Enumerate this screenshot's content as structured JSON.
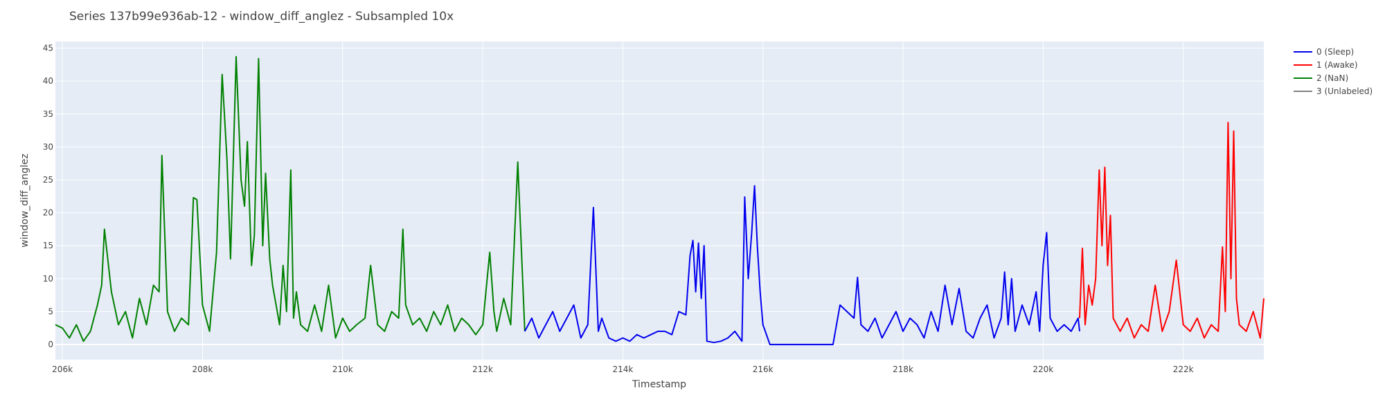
{
  "chart_data": {
    "type": "line",
    "title": "Series 137b99e936ab-12 - window_diff_anglez - Subsampled 10x",
    "xlabel": "Timestamp",
    "ylabel": "window_diff_anglez",
    "xlim": [
      205900,
      223150
    ],
    "ylim": [
      -2.3,
      46
    ],
    "x_ticks": [
      206000,
      208000,
      210000,
      212000,
      214000,
      216000,
      218000,
      220000,
      222000
    ],
    "x_tick_labels": [
      "206k",
      "208k",
      "210k",
      "212k",
      "214k",
      "216k",
      "218k",
      "220k",
      "222k"
    ],
    "y_ticks": [
      0,
      5,
      10,
      15,
      20,
      25,
      30,
      35,
      40,
      45
    ],
    "y_tick_labels": [
      "0",
      "5",
      "10",
      "15",
      "20",
      "25",
      "30",
      "35",
      "40",
      "45"
    ],
    "grid": true,
    "legend_position": "top-right",
    "legend": [
      {
        "label": "0 (Sleep)",
        "color": "#0000ee"
      },
      {
        "label": "1 (Awake)",
        "color": "#ff0000"
      },
      {
        "label": "2 (NaN)",
        "color": "#008000"
      },
      {
        "label": "3 (Unlabeled)",
        "color": "#808080"
      }
    ],
    "series": [
      {
        "name": "2 (NaN)",
        "color": "#008000",
        "x": [
          205900,
          206000,
          206100,
          206200,
          206300,
          206400,
          206500,
          206560,
          206600,
          206700,
          206800,
          206900,
          207000,
          207100,
          207200,
          207300,
          207380,
          207420,
          207500,
          207600,
          207700,
          207800,
          207870,
          207920,
          208000,
          208100,
          208200,
          208280,
          208350,
          208400,
          208480,
          208550,
          208600,
          208640,
          208700,
          208740,
          208800,
          208860,
          208900,
          208960,
          209000,
          209050,
          209100,
          209150,
          209200,
          209260,
          209300,
          209340,
          209400,
          209500,
          209600,
          209700,
          209800,
          209900,
          210000,
          210100,
          210200,
          210320,
          210400,
          210500,
          210600,
          210700,
          210800,
          210860,
          210900,
          211000,
          211100,
          211200,
          211300,
          211400,
          211500,
          211600,
          211700,
          211800,
          211900,
          212000,
          212100,
          212160,
          212200,
          212300,
          212400,
          212500,
          212600
        ],
        "y": [
          3,
          2.5,
          1,
          3,
          0.5,
          2,
          6,
          9,
          17.5,
          8,
          3,
          5,
          1,
          7,
          3,
          9,
          8,
          28.7,
          5,
          2,
          4,
          3,
          22.3,
          22,
          6,
          2,
          14,
          41,
          28,
          13,
          43.7,
          25,
          21,
          30.8,
          12,
          16.6,
          43.4,
          15,
          26,
          13,
          9,
          6,
          3,
          12,
          5,
          26.5,
          4,
          8,
          3,
          2,
          6,
          2,
          9,
          1,
          4,
          2,
          3,
          4,
          12,
          3,
          2,
          5,
          4,
          17.5,
          6,
          3,
          4,
          2,
          5,
          3,
          6,
          2,
          4,
          3,
          1.5,
          3,
          14,
          5,
          2,
          7,
          3,
          27.7,
          2
        ]
      },
      {
        "name": "0 (Sleep)",
        "color": "#0000ee",
        "x": [
          212600,
          212700,
          212800,
          212900,
          213000,
          213100,
          213200,
          213300,
          213400,
          213500,
          213580,
          213650,
          213700,
          213800,
          213900,
          214000,
          214100,
          214200,
          214300,
          214400,
          214500,
          214600,
          214700,
          214800,
          214900,
          214960,
          215000,
          215040,
          215080,
          215120,
          215160,
          215200,
          215300,
          215400,
          215500,
          215600,
          215700,
          215740,
          215790,
          215840,
          215880,
          215920,
          215960,
          216000,
          216050,
          216100,
          216200,
          216300,
          216400,
          216500,
          216600,
          216700,
          216800,
          216900,
          217000,
          217100,
          217200,
          217300,
          217350,
          217400,
          217500,
          217600,
          217700,
          217800,
          217900,
          218000,
          218100,
          218200,
          218300,
          218400,
          218500,
          218600,
          218700,
          218800,
          218900,
          219000,
          219100,
          219200,
          219300,
          219400,
          219450,
          219500,
          219550,
          219600,
          219700,
          219800,
          219900,
          219950,
          220000,
          220050,
          220100,
          220200,
          220300,
          220400,
          220500,
          220520
        ],
        "y": [
          2,
          4,
          1,
          3,
          5,
          2,
          4,
          6,
          1,
          3,
          20.8,
          2,
          4,
          1,
          0.5,
          1,
          0.5,
          1.5,
          1,
          1.5,
          2,
          2,
          1.5,
          5,
          4.5,
          13.5,
          15.8,
          8,
          15.4,
          7,
          15,
          0.5,
          0.3,
          0.5,
          1,
          2,
          0.5,
          22.4,
          10,
          17,
          24.1,
          15,
          8,
          3,
          1.5,
          0,
          0,
          0,
          0,
          0,
          0,
          0,
          0,
          0,
          0,
          6,
          5,
          4,
          10.2,
          3,
          2,
          4,
          1,
          3,
          5,
          2,
          4,
          3,
          1,
          5,
          2,
          9,
          3,
          8.5,
          2,
          1,
          4,
          6,
          1,
          4,
          11,
          3,
          10,
          2,
          6,
          3,
          8,
          2,
          12,
          17,
          4,
          2,
          3,
          2,
          4,
          2
        ]
      },
      {
        "name": "1 (Awake)",
        "color": "#ff0000",
        "x": [
          220520,
          220560,
          220600,
          220650,
          220700,
          220750,
          220800,
          220840,
          220880,
          220920,
          220960,
          221000,
          221100,
          221200,
          221300,
          221400,
          221500,
          221600,
          221700,
          221800,
          221900,
          222000,
          222100,
          222200,
          222300,
          222400,
          222500,
          222560,
          222600,
          222640,
          222680,
          222720,
          222760,
          222800,
          222900,
          223000,
          223100,
          223150
        ],
        "y": [
          4,
          14.6,
          3,
          9,
          6,
          10,
          26.5,
          15,
          26.9,
          12,
          19.6,
          4,
          2,
          4,
          1,
          3,
          2,
          9,
          2,
          5,
          12.8,
          3,
          2,
          4,
          1,
          3,
          2,
          14.8,
          5,
          33.7,
          10,
          32.4,
          7,
          3,
          2,
          5,
          1,
          7
        ]
      },
      {
        "name": "3 (Unlabeled)",
        "color": "#808080",
        "x": [],
        "y": []
      }
    ]
  }
}
